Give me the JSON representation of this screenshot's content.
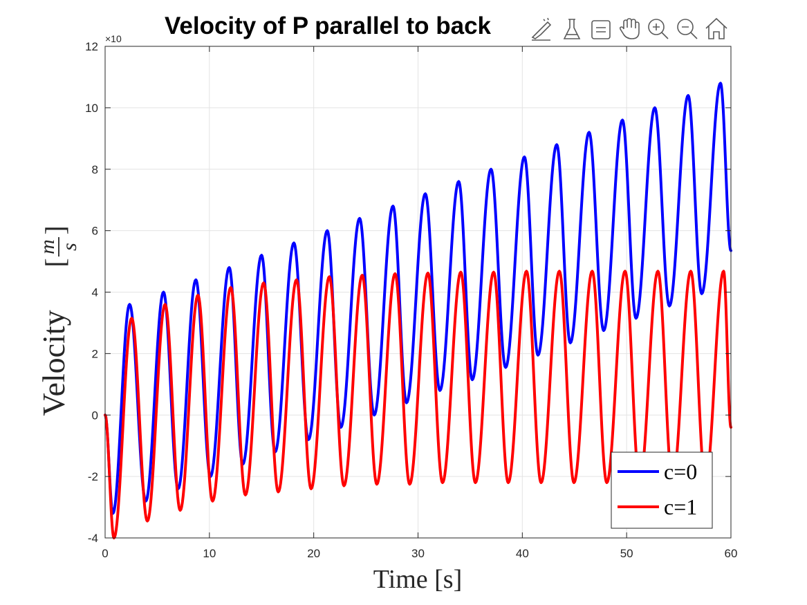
{
  "toolbar": {
    "icons": [
      "brush-pen-icon",
      "data-tips-icon",
      "legend-box-icon",
      "pan-hand-icon",
      "zoom-in-icon",
      "zoom-out-icon",
      "home-icon"
    ]
  },
  "chart_data": {
    "type": "line",
    "title": "Velocity of P parallel to back",
    "xlabel": "Time [s]",
    "ylabel": "Velocity",
    "ylabel_unit_num": "m",
    "ylabel_unit_den": "s",
    "y_exponent_prefix": "×10",
    "xlim": [
      0,
      60
    ],
    "ylim": [
      -4,
      12
    ],
    "x_ticks": [
      "0",
      "10",
      "20",
      "30",
      "40",
      "50",
      "60"
    ],
    "y_ticks": [
      "-4",
      "-2",
      "0",
      "2",
      "4",
      "6",
      "8",
      "10",
      "12"
    ],
    "grid": true,
    "legend_position": "bottom-right",
    "series": [
      {
        "name": "c=0",
        "color": "#0000ff",
        "x": [
          0,
          0.75,
          2.35,
          3.9,
          5.6,
          7.0,
          8.7,
          10.1,
          11.9,
          13.2,
          15.0,
          16.3,
          18.1,
          19.5,
          21.3,
          22.6,
          24.4,
          25.8,
          27.6,
          28.9,
          30.7,
          32.1,
          33.9,
          35.2,
          37.0,
          38.4,
          40.2,
          41.5,
          43.3,
          44.6,
          46.4,
          47.8,
          49.6,
          50.9,
          52.7,
          54.1,
          55.9,
          57.2,
          59.0,
          60.0
        ],
        "y": [
          0,
          -3.2,
          3.6,
          -2.8,
          4.0,
          -2.4,
          4.4,
          -2.0,
          4.8,
          -1.6,
          5.2,
          -1.2,
          5.6,
          -0.8,
          6.0,
          -0.4,
          6.4,
          0.0,
          6.8,
          0.4,
          7.2,
          0.8,
          7.6,
          1.15,
          8.0,
          1.55,
          8.4,
          1.95,
          8.8,
          2.35,
          9.2,
          2.75,
          9.6,
          3.15,
          10.0,
          3.55,
          10.4,
          3.95,
          10.8,
          5.35
        ]
      },
      {
        "name": "c=1",
        "color": "#ff0000",
        "x": [
          0,
          0.85,
          2.55,
          4.05,
          5.75,
          7.2,
          8.9,
          10.3,
          12.05,
          13.45,
          15.2,
          16.6,
          18.35,
          19.75,
          21.5,
          22.9,
          24.65,
          26.05,
          27.8,
          29.2,
          30.95,
          32.35,
          34.1,
          35.5,
          37.25,
          38.65,
          40.4,
          41.8,
          43.55,
          44.95,
          46.7,
          48.1,
          49.85,
          51.25,
          53.0,
          54.4,
          56.15,
          57.55,
          59.3,
          60.0
        ],
        "y": [
          0,
          -4.0,
          3.15,
          -3.45,
          3.6,
          -3.1,
          3.9,
          -2.8,
          4.15,
          -2.6,
          4.3,
          -2.5,
          4.4,
          -2.4,
          4.5,
          -2.3,
          4.55,
          -2.25,
          4.6,
          -2.25,
          4.62,
          -2.2,
          4.65,
          -2.2,
          4.65,
          -2.2,
          4.68,
          -2.2,
          4.68,
          -2.2,
          4.68,
          -2.2,
          4.68,
          -2.2,
          4.68,
          -2.2,
          4.68,
          -2.2,
          4.68,
          -0.4
        ]
      }
    ]
  }
}
